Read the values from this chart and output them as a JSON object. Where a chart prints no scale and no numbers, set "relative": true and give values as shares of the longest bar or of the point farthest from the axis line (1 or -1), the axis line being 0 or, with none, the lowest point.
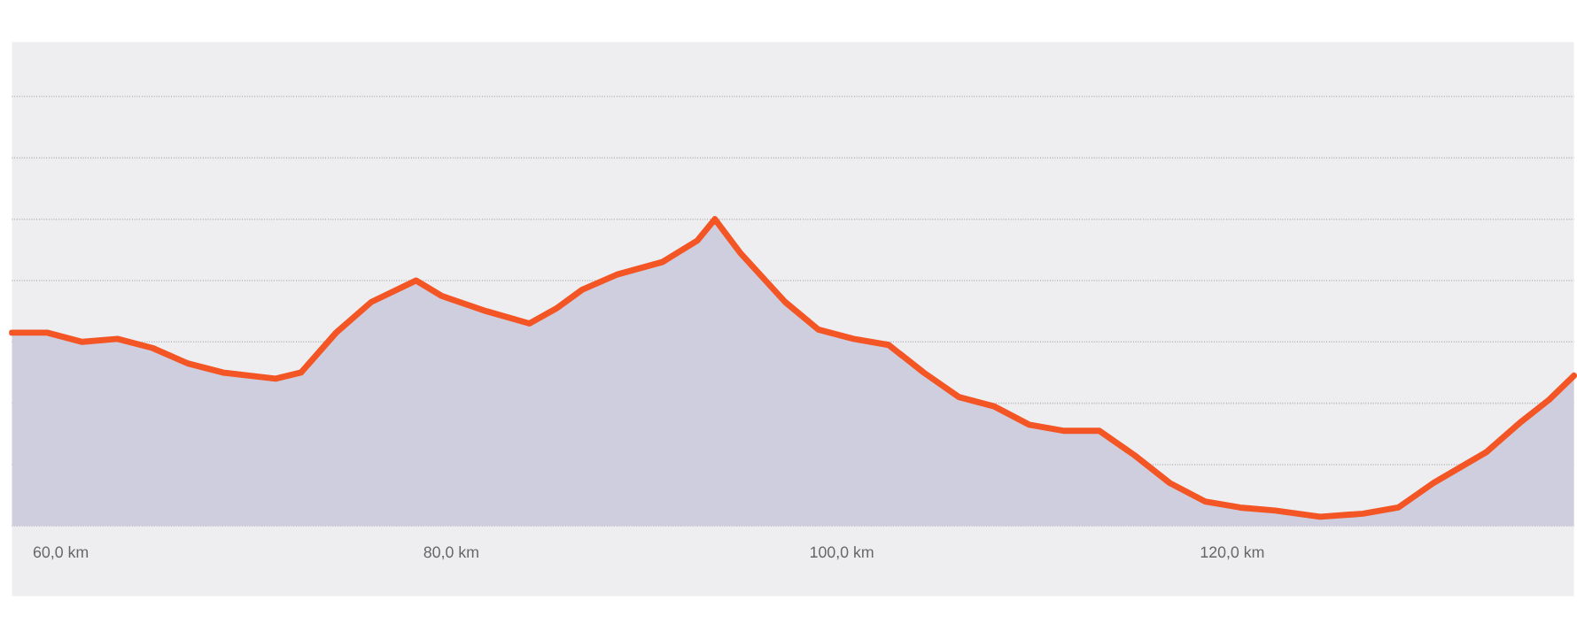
{
  "chart_data": {
    "type": "area",
    "relative": true,
    "grid": "y",
    "xlim": [
      57.5,
      137.5
    ],
    "xticks": [
      {
        "value": 60,
        "label": "60,0 km"
      },
      {
        "value": 80,
        "label": "80,0 km"
      },
      {
        "value": 100,
        "label": "100,0 km"
      },
      {
        "value": 120,
        "label": "120,0 km"
      }
    ],
    "x": [
      57.5,
      59.3,
      61.1,
      62.9,
      64.7,
      66.5,
      68.3,
      71.0,
      72.3,
      74.1,
      75.9,
      78.2,
      79.5,
      81.8,
      84.0,
      85.4,
      86.7,
      88.5,
      90.8,
      92.6,
      93.5,
      94.8,
      97.1,
      98.8,
      100.6,
      102.4,
      104.2,
      106.0,
      107.8,
      109.6,
      111.4,
      113.2,
      115.0,
      116.8,
      118.6,
      120.4,
      122.2,
      124.5,
      126.7,
      128.5,
      130.3,
      133.0,
      134.8,
      136.2,
      137.5
    ],
    "series": [
      {
        "color": "#f45524",
        "values": [
          0.63,
          0.63,
          0.6,
          0.61,
          0.58,
          0.53,
          0.5,
          0.48,
          0.5,
          0.63,
          0.73,
          0.8,
          0.75,
          0.7,
          0.66,
          0.71,
          0.77,
          0.82,
          0.86,
          0.93,
          1,
          0.89,
          0.73,
          0.64,
          0.61,
          0.59,
          0.5,
          0.42,
          0.39,
          0.33,
          0.31,
          0.31,
          0.23,
          0.14,
          0.08,
          0.06,
          0.05,
          0.03,
          0.04,
          0.06,
          0.14,
          0.24,
          0.34,
          0.41,
          0.49
        ]
      }
    ]
  }
}
